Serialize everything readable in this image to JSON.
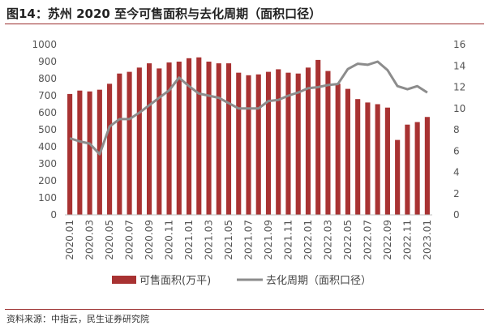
{
  "title": "图14：苏州 2020 至今可售面积与去化周期（面积口径）",
  "source": "资料来源：中指云，民生证券研究院",
  "colors": {
    "bar": "#a83232",
    "line": "#8c8c8c",
    "rule": "#9b2d2d"
  },
  "chart_data": {
    "type": "bar",
    "categories": [
      "2020.01",
      "2020.02",
      "2020.03",
      "2020.04",
      "2020.05",
      "2020.06",
      "2020.07",
      "2020.08",
      "2020.09",
      "2020.10",
      "2020.11",
      "2020.12",
      "2021.01",
      "2021.02",
      "2021.03",
      "2021.04",
      "2021.05",
      "2021.06",
      "2021.07",
      "2021.08",
      "2021.09",
      "2021.10",
      "2021.11",
      "2021.12",
      "2022.01",
      "2022.02",
      "2022.03",
      "2022.04",
      "2022.05",
      "2022.06",
      "2022.07",
      "2022.08",
      "2022.09",
      "2022.10",
      "2022.11",
      "2022.12",
      "2023.01"
    ],
    "x_tick_labels": [
      "2020.01",
      "2020.03",
      "2020.05",
      "2020.07",
      "2020.09",
      "2020.11",
      "2021.01",
      "2021.03",
      "2021.05",
      "2021.07",
      "2021.09",
      "2021.11",
      "2022.01",
      "2022.03",
      "2022.05",
      "2022.07",
      "2022.09",
      "2022.11",
      "2023.01"
    ],
    "series": [
      {
        "name": "可售面积(万平)",
        "type": "bar",
        "axis": "left",
        "values": [
          710,
          730,
          725,
          735,
          770,
          830,
          840,
          865,
          890,
          860,
          895,
          900,
          920,
          925,
          900,
          890,
          890,
          835,
          820,
          825,
          840,
          855,
          835,
          830,
          865,
          910,
          845,
          770,
          740,
          680,
          660,
          650,
          630,
          440,
          530,
          545,
          575
        ]
      },
      {
        "name": "去化周期（面积口径）",
        "type": "line",
        "axis": "right",
        "values": [
          7.2,
          6.9,
          6.7,
          5.7,
          8.3,
          9.0,
          9.0,
          9.6,
          10.3,
          11.0,
          11.7,
          12.9,
          12.1,
          11.4,
          11.2,
          11.0,
          10.5,
          10.0,
          10.0,
          10.0,
          10.7,
          10.8,
          11.2,
          11.5,
          11.9,
          12.0,
          12.2,
          12.3,
          13.7,
          14.2,
          14.1,
          14.4,
          13.6,
          12.1,
          11.8,
          12.1,
          11.5
        ]
      }
    ],
    "y_left": {
      "min": 0,
      "max": 1000,
      "step": 100
    },
    "y_right": {
      "min": 0,
      "max": 16,
      "step": 2
    },
    "legend_position": "bottom",
    "grid": false
  }
}
